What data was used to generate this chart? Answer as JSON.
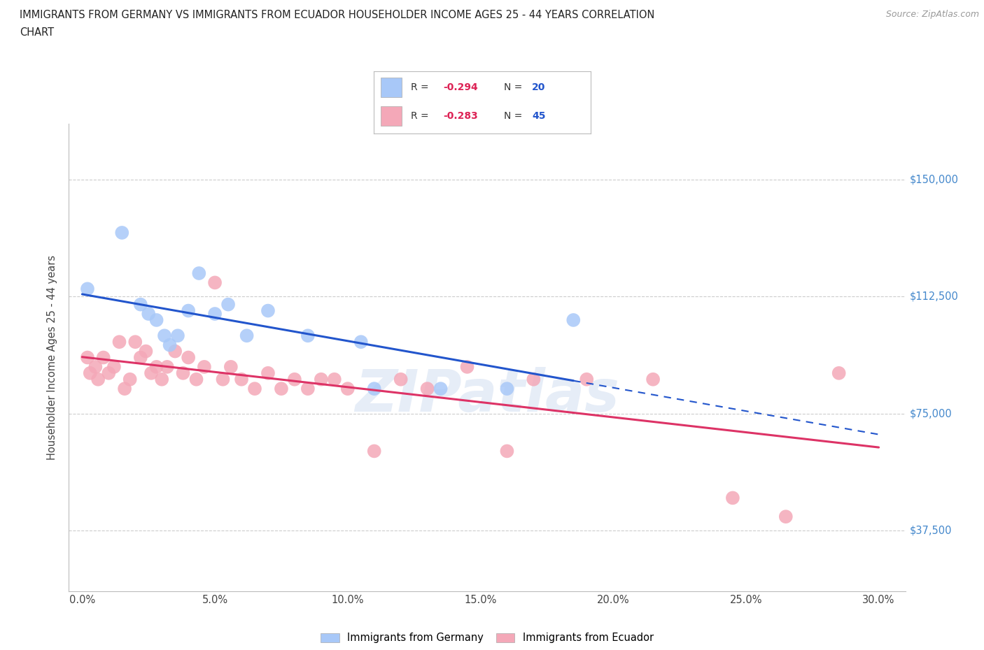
{
  "title_line1": "IMMIGRANTS FROM GERMANY VS IMMIGRANTS FROM ECUADOR HOUSEHOLDER INCOME AGES 25 - 44 YEARS CORRELATION",
  "title_line2": "CHART",
  "source": "Source: ZipAtlas.com",
  "xlabel_vals": [
    0.0,
    5.0,
    10.0,
    15.0,
    20.0,
    25.0,
    30.0
  ],
  "ylabel_vals": [
    37500,
    75000,
    112500,
    150000
  ],
  "ylabel_labels": [
    "$37,500",
    "$75,000",
    "$112,500",
    "$150,000"
  ],
  "xlim": [
    -0.5,
    31.0
  ],
  "ylim": [
    18000,
    168000
  ],
  "germany_r": -0.294,
  "germany_n": 20,
  "ecuador_r": -0.283,
  "ecuador_n": 45,
  "germany_color": "#a8c8f8",
  "ecuador_color": "#f4a8b8",
  "germany_line_color": "#2255cc",
  "ecuador_line_color": "#dd3366",
  "watermark": "ZIPatlas",
  "germany_x": [
    0.2,
    1.5,
    2.2,
    2.5,
    2.8,
    3.1,
    3.3,
    3.6,
    4.0,
    4.4,
    5.0,
    5.5,
    6.2,
    7.0,
    8.5,
    10.5,
    11.0,
    13.5,
    16.0,
    18.5
  ],
  "germany_y": [
    115000,
    133000,
    110000,
    107000,
    105000,
    100000,
    97000,
    100000,
    108000,
    120000,
    107000,
    110000,
    100000,
    108000,
    100000,
    98000,
    83000,
    83000,
    83000,
    105000
  ],
  "ecuador_x": [
    0.2,
    0.3,
    0.5,
    0.6,
    0.8,
    1.0,
    1.2,
    1.4,
    1.6,
    1.8,
    2.0,
    2.2,
    2.4,
    2.6,
    2.8,
    3.0,
    3.2,
    3.5,
    3.8,
    4.0,
    4.3,
    4.6,
    5.0,
    5.3,
    5.6,
    6.0,
    6.5,
    7.0,
    7.5,
    8.0,
    8.5,
    9.0,
    9.5,
    10.0,
    11.0,
    12.0,
    13.0,
    14.5,
    16.0,
    17.0,
    19.0,
    21.5,
    24.5,
    26.5,
    28.5
  ],
  "ecuador_y": [
    93000,
    88000,
    90000,
    86000,
    93000,
    88000,
    90000,
    98000,
    83000,
    86000,
    98000,
    93000,
    95000,
    88000,
    90000,
    86000,
    90000,
    95000,
    88000,
    93000,
    86000,
    90000,
    117000,
    86000,
    90000,
    86000,
    83000,
    88000,
    83000,
    86000,
    83000,
    86000,
    86000,
    83000,
    63000,
    86000,
    83000,
    90000,
    63000,
    86000,
    86000,
    86000,
    48000,
    42000,
    88000
  ]
}
